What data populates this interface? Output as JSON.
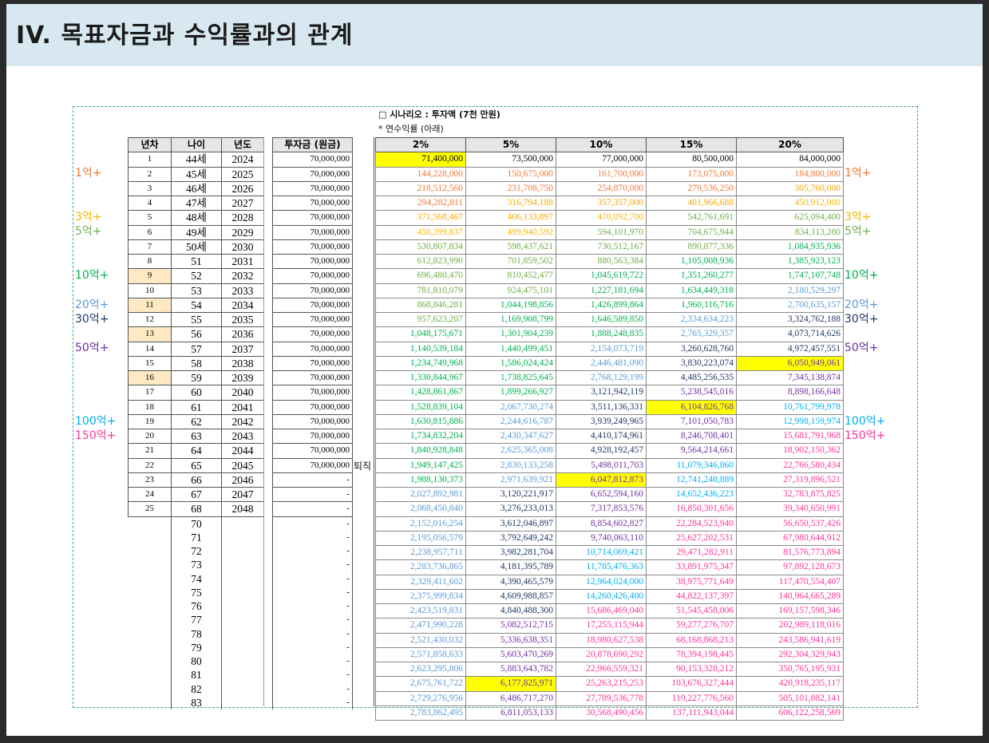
{
  "title": "IV. 목표자금과 수익률과의 관계",
  "scenario": "□ 시나리오 : 투자액 (7천 만원)",
  "note": "* 연수익률 (아래)",
  "retire_label": "퇴직",
  "headers": {
    "year_no": "년차",
    "age": "나이",
    "year": "년도",
    "principal": "투자금 (원금)",
    "rates": [
      "2%",
      "5%",
      "10%",
      "15%",
      "20%"
    ]
  },
  "rows": [
    {
      "n": "1",
      "age": "44세",
      "year": "2024",
      "p": "70,000,000",
      "v": [
        "71,400,000",
        "73,500,000",
        "77,000,000",
        "80,500,000",
        "84,000,000"
      ]
    },
    {
      "n": "2",
      "age": "45세",
      "year": "2025",
      "p": "70,000,000",
      "v": [
        "144,228,000",
        "150,675,000",
        "161,700,000",
        "173,075,000",
        "184,800,000"
      ]
    },
    {
      "n": "3",
      "age": "46세",
      "year": "2026",
      "p": "70,000,000",
      "v": [
        "218,512,560",
        "231,708,750",
        "254,870,000",
        "279,536,250",
        "305,760,000"
      ]
    },
    {
      "n": "4",
      "age": "47세",
      "year": "2027",
      "p": "70,000,000",
      "v": [
        "294,282,811",
        "316,794,188",
        "357,357,000",
        "401,966,688",
        "450,912,000"
      ]
    },
    {
      "n": "5",
      "age": "48세",
      "year": "2028",
      "p": "70,000,000",
      "v": [
        "371,568,467",
        "406,133,897",
        "470,092,700",
        "542,761,691",
        "625,094,400"
      ]
    },
    {
      "n": "6",
      "age": "49세",
      "year": "2029",
      "p": "70,000,000",
      "v": [
        "450,399,837",
        "499,940,592",
        "594,101,970",
        "704,675,944",
        "834,113,280"
      ]
    },
    {
      "n": "7",
      "age": "50세",
      "year": "2030",
      "p": "70,000,000",
      "v": [
        "530,807,834",
        "598,437,621",
        "730,512,167",
        "890,877,336",
        "1,084,935,936"
      ]
    },
    {
      "n": "8",
      "age": "51",
      "year": "2031",
      "p": "70,000,000",
      "v": [
        "612,823,990",
        "701,859,502",
        "880,563,384",
        "1,105,008,936",
        "1,385,923,123"
      ]
    },
    {
      "n": "9",
      "age": "52",
      "year": "2032",
      "p": "70,000,000",
      "v": [
        "696,480,470",
        "810,452,477",
        "1,045,619,722",
        "1,351,260,277",
        "1,747,107,748"
      ]
    },
    {
      "n": "10",
      "age": "53",
      "year": "2033",
      "p": "70,000,000",
      "v": [
        "781,810,079",
        "924,475,101",
        "1,227,181,694",
        "1,634,449,318",
        "2,180,529,297"
      ]
    },
    {
      "n": "11",
      "age": "54",
      "year": "2034",
      "p": "70,000,000",
      "v": [
        "868,846,281",
        "1,044,198,856",
        "1,426,899,864",
        "1,960,116,716",
        "2,700,635,157"
      ]
    },
    {
      "n": "12",
      "age": "55",
      "year": "2035",
      "p": "70,000,000",
      "v": [
        "957,623,207",
        "1,169,908,799",
        "1,646,589,850",
        "2,334,634,223",
        "3,324,762,188"
      ]
    },
    {
      "n": "13",
      "age": "56",
      "year": "2036",
      "p": "70,000,000",
      "v": [
        "1,048,175,671",
        "1,301,904,239",
        "1,888,248,835",
        "2,765,329,357",
        "4,073,714,626"
      ]
    },
    {
      "n": "14",
      "age": "57",
      "year": "2037",
      "p": "70,000,000",
      "v": [
        "1,140,539,184",
        "1,440,499,451",
        "2,154,073,719",
        "3,260,628,760",
        "4,972,457,551"
      ]
    },
    {
      "n": "15",
      "age": "58",
      "year": "2038",
      "p": "70,000,000",
      "v": [
        "1,234,749,968",
        "1,586,024,424",
        "2,446,481,090",
        "3,830,223,074",
        "6,050,949,061"
      ]
    },
    {
      "n": "16",
      "age": "59",
      "year": "2039",
      "p": "70,000,000",
      "v": [
        "1,330,844,967",
        "1,738,825,645",
        "2,768,129,199",
        "4,485,256,535",
        "7,345,138,874"
      ]
    },
    {
      "n": "17",
      "age": "60",
      "year": "2040",
      "p": "70,000,000",
      "v": [
        "1,428,861,867",
        "1,899,266,927",
        "3,121,942,119",
        "5,238,545,016",
        "8,898,166,648"
      ]
    },
    {
      "n": "18",
      "age": "61",
      "year": "2041",
      "p": "70,000,000",
      "v": [
        "1,528,839,104",
        "2,067,730,274",
        "3,511,136,331",
        "6,104,826,768",
        "10,761,799,978"
      ]
    },
    {
      "n": "19",
      "age": "62",
      "year": "2042",
      "p": "70,000,000",
      "v": [
        "1,630,815,886",
        "2,244,616,787",
        "3,939,249,965",
        "7,101,050,783",
        "12,998,159,974"
      ]
    },
    {
      "n": "20",
      "age": "63",
      "year": "2043",
      "p": "70,000,000",
      "v": [
        "1,734,832,204",
        "2,430,347,627",
        "4,410,174,961",
        "8,246,708,401",
        "15,681,791,968"
      ]
    },
    {
      "n": "21",
      "age": "64",
      "year": "2044",
      "p": "70,000,000",
      "v": [
        "1,840,928,848",
        "2,625,365,008",
        "4,928,192,457",
        "9,564,214,661",
        "18,902,150,362"
      ]
    },
    {
      "n": "22",
      "age": "65",
      "year": "2045",
      "p": "70,000,000",
      "v": [
        "1,949,147,425",
        "2,830,133,258",
        "5,498,011,703",
        "11,079,346,860",
        "22,766,580,434"
      ]
    },
    {
      "n": "23",
      "age": "66",
      "year": "2046",
      "p": "-",
      "v": [
        "1,988,130,373",
        "2,971,639,921",
        "6,047,812,873",
        "12,741,248,889",
        "27,319,896,521"
      ]
    },
    {
      "n": "24",
      "age": "67",
      "year": "2047",
      "p": "-",
      "v": [
        "2,027,892,981",
        "3,120,221,917",
        "6,652,594,160",
        "14,652,436,223",
        "32,783,875,825"
      ]
    },
    {
      "n": "25",
      "age": "68",
      "year": "2048",
      "p": "-",
      "v": [
        "2,068,450,840",
        "3,276,233,013",
        "7,317,853,576",
        "16,850,301,656",
        "39,340,650,991"
      ]
    },
    {
      "n": "",
      "age": "70",
      "year": "",
      "p": "-",
      "v": [
        "2,152,016,254",
        "3,612,046,897",
        "8,854,602,827",
        "22,284,523,940",
        "56,650,537,426"
      ]
    },
    {
      "n": "",
      "age": "71",
      "year": "",
      "p": "-",
      "v": [
        "2,195,056,579",
        "3,792,649,242",
        "9,740,063,110",
        "25,627,202,531",
        "67,980,644,912"
      ]
    },
    {
      "n": "",
      "age": "72",
      "year": "",
      "p": "-",
      "v": [
        "2,238,957,711",
        "3,982,281,704",
        "10,714,069,421",
        "29,471,282,911",
        "81,576,773,894"
      ]
    },
    {
      "n": "",
      "age": "73",
      "year": "",
      "p": "-",
      "v": [
        "2,283,736,865",
        "4,181,395,789",
        "11,785,476,363",
        "33,891,975,347",
        "97,892,128,673"
      ]
    },
    {
      "n": "",
      "age": "74",
      "year": "",
      "p": "-",
      "v": [
        "2,329,411,602",
        "4,390,465,579",
        "12,964,024,000",
        "38,975,771,649",
        "117,470,554,407"
      ]
    },
    {
      "n": "",
      "age": "75",
      "year": "",
      "p": "-",
      "v": [
        "2,375,999,834",
        "4,609,988,857",
        "14,260,426,400",
        "44,822,137,397",
        "140,964,665,289"
      ]
    },
    {
      "n": "",
      "age": "76",
      "year": "",
      "p": "-",
      "v": [
        "2,423,519,831",
        "4,840,488,300",
        "15,686,469,040",
        "51,545,458,006",
        "169,157,598,346"
      ]
    },
    {
      "n": "",
      "age": "77",
      "year": "",
      "p": "-",
      "v": [
        "2,471,990,228",
        "5,082,512,715",
        "17,255,115,944",
        "59,277,276,707",
        "202,989,118,016"
      ]
    },
    {
      "n": "",
      "age": "78",
      "year": "",
      "p": "-",
      "v": [
        "2,521,430,032",
        "5,336,638,351",
        "18,980,627,538",
        "68,168,868,213",
        "243,586,941,619"
      ]
    },
    {
      "n": "",
      "age": "79",
      "year": "",
      "p": "-",
      "v": [
        "2,571,858,633",
        "5,603,470,269",
        "20,878,690,292",
        "78,394,198,445",
        "292,304,329,943"
      ]
    },
    {
      "n": "",
      "age": "80",
      "year": "",
      "p": "-",
      "v": [
        "2,623,295,806",
        "5,883,643,782",
        "22,966,559,321",
        "90,153,328,212",
        "350,765,195,931"
      ]
    },
    {
      "n": "",
      "age": "81",
      "year": "",
      "p": "-",
      "v": [
        "2,675,761,722",
        "6,177,825,971",
        "25,263,215,253",
        "103,676,327,444",
        "420,918,235,117"
      ]
    },
    {
      "n": "",
      "age": "82",
      "year": "",
      "p": "-",
      "v": [
        "2,729,276,956",
        "6,486,717,270",
        "27,789,536,778",
        "119,227,776,560",
        "505,101,882,141"
      ]
    },
    {
      "n": "",
      "age": "83",
      "year": "",
      "p": "-",
      "v": [
        "2,783,862,495",
        "6,811,053,133",
        "30,568,490,456",
        "137,111,943,044",
        "606,122,258,569"
      ]
    }
  ],
  "tier_colors": [
    "#000000",
    "#f07838",
    "#f6a800",
    "#f5b800",
    "#70ad47",
    "#00b050",
    "#5b9bd5",
    "#1f3864",
    "#7030a0",
    "#00b0f0",
    "#ff3399"
  ],
  "yearno_highlight": [
    "9",
    "11",
    "13",
    "16"
  ],
  "yellow_cells": [
    [
      0,
      0
    ],
    [
      14,
      4
    ],
    [
      17,
      3
    ],
    [
      22,
      2
    ],
    [
      36,
      1
    ]
  ],
  "markers_left": [
    {
      "label": "1억+",
      "row": 1,
      "color": "#f07838"
    },
    {
      "label": "3억+",
      "row": 4,
      "color": "#f5b800"
    },
    {
      "label": "5억+",
      "row": 5,
      "color": "#70ad47"
    },
    {
      "label": "10억+",
      "row": 8,
      "color": "#00b050"
    },
    {
      "label": "20억+",
      "row": 10,
      "color": "#5b9bd5"
    },
    {
      "label": "30억+",
      "row": 11,
      "color": "#1f3864"
    },
    {
      "label": "50억+",
      "row": 13,
      "color": "#7030a0"
    },
    {
      "label": "100억+",
      "row": 18,
      "color": "#00b0f0"
    },
    {
      "label": "150억+",
      "row": 19,
      "color": "#ff3399"
    }
  ],
  "markers_right": [
    {
      "label": "1억+",
      "row": 1,
      "color": "#f07838"
    },
    {
      "label": "3억+",
      "row": 4,
      "color": "#f5b800"
    },
    {
      "label": "5억+",
      "row": 5,
      "color": "#70ad47"
    },
    {
      "label": "10억+",
      "row": 8,
      "color": "#00b050"
    },
    {
      "label": "20억+",
      "row": 10,
      "color": "#5b9bd5"
    },
    {
      "label": "30억+",
      "row": 11,
      "color": "#1f3864"
    },
    {
      "label": "50억+",
      "row": 13,
      "color": "#7030a0"
    },
    {
      "label": "100억+",
      "row": 18,
      "color": "#00b0f0"
    },
    {
      "label": "150억+",
      "row": 19,
      "color": "#ff3399"
    }
  ]
}
